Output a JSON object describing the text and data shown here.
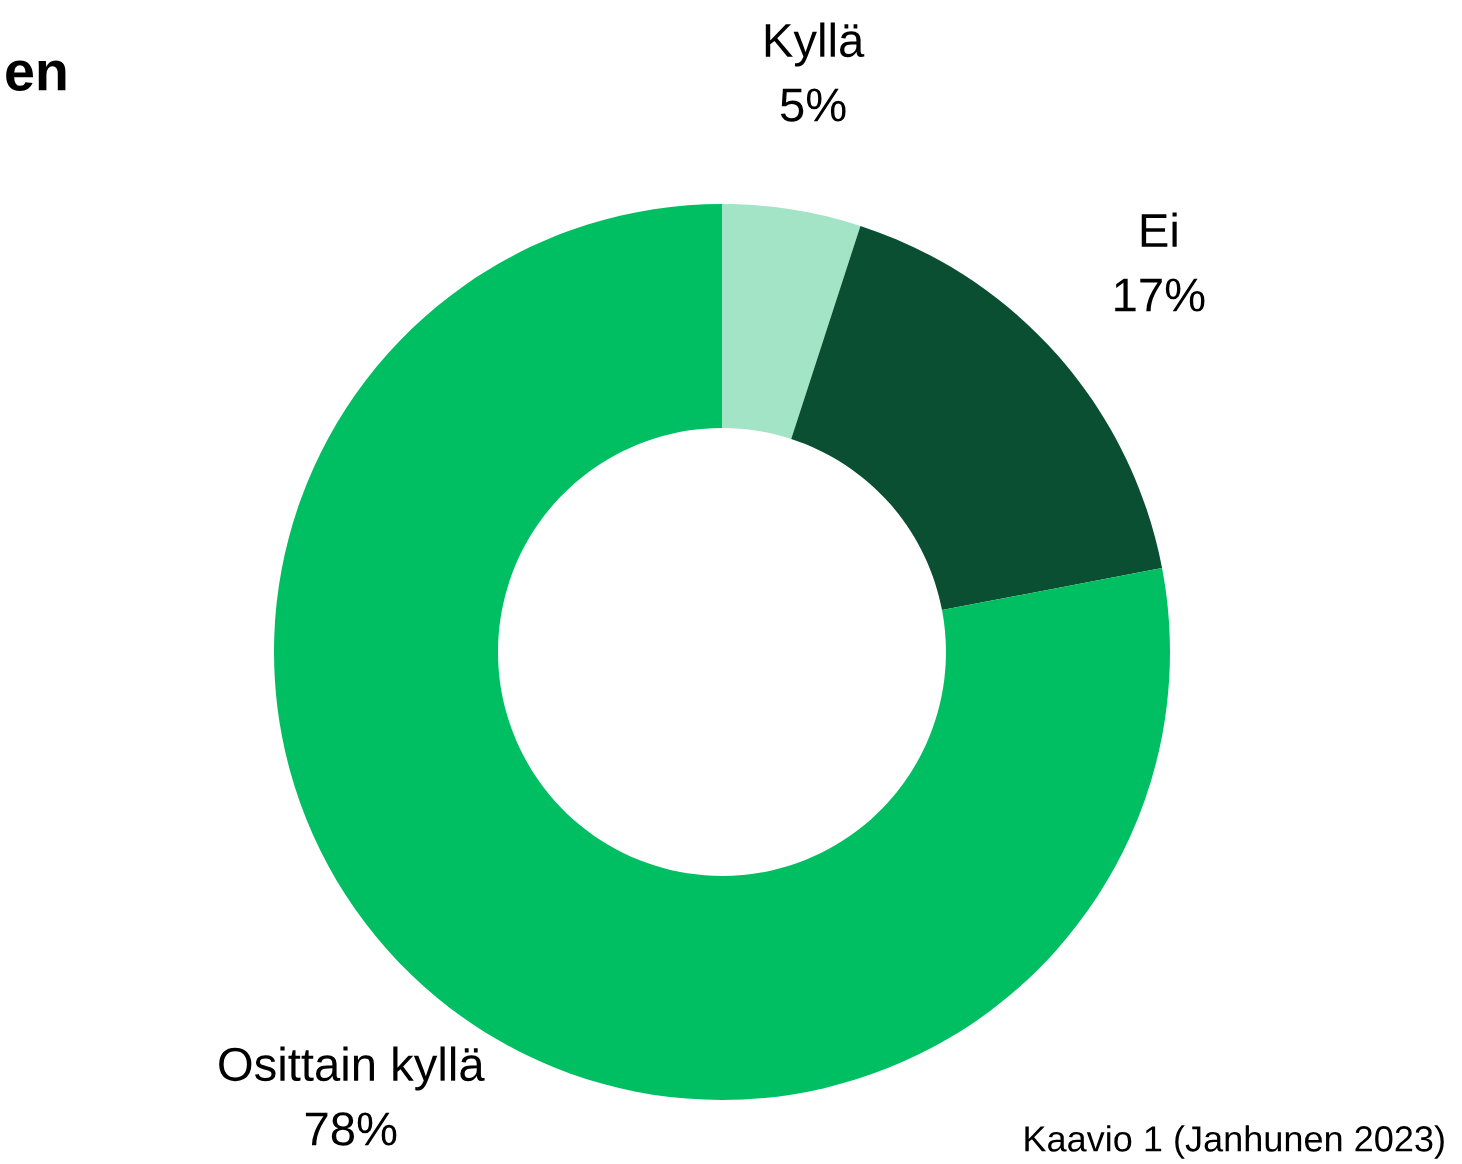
{
  "chart_data": {
    "type": "donut",
    "title": "en",
    "categories": [
      "Kyllä",
      "Ei",
      "Osittain kyllä"
    ],
    "values": [
      5,
      17,
      78
    ],
    "colors": [
      "#a3e4c6",
      "#0b4f32",
      "#00bf63"
    ],
    "value_labels": [
      "5%",
      "17%",
      "78%"
    ],
    "annotations": [
      "Kaavio 1 (Janhunen 2023)"
    ],
    "legend": false
  }
}
